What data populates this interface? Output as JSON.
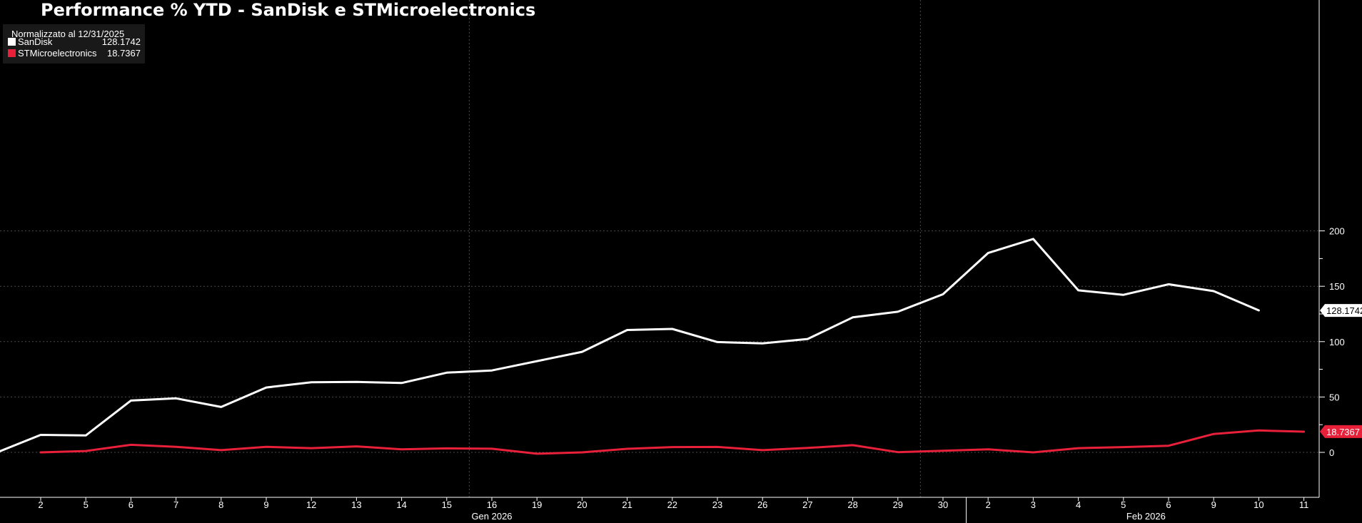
{
  "chart_data": {
    "type": "line",
    "title": "Performance % YTD - SanDisk e STMicroelectronics",
    "normalization_note": "Normalizzato al 12/31/2025",
    "x": [
      "2",
      "5",
      "6",
      "7",
      "8",
      "9",
      "12",
      "13",
      "14",
      "15",
      "16",
      "19",
      "20",
      "21",
      "22",
      "23",
      "26",
      "27",
      "28",
      "29",
      "30",
      "2",
      "3",
      "4",
      "5",
      "6",
      "9",
      "10",
      "11"
    ],
    "periods": [
      {
        "label": "Gen 2026",
        "start_index": 0,
        "end_index": 20
      },
      {
        "label": "Feb 2026",
        "start_index": 21,
        "end_index": 28
      }
    ],
    "yticks": [
      0,
      50,
      100,
      150,
      200
    ],
    "ylim": [
      -20,
      205
    ],
    "grid": true,
    "legend_position": "top-left",
    "series": [
      {
        "name": "SanDisk",
        "color": "#ffffff",
        "last_value": "128.1742",
        "leading_value": 1,
        "values": [
          15.8,
          15.3,
          46.8,
          48.8,
          41.0,
          58.6,
          63.3,
          63.6,
          62.6,
          72.0,
          74.0,
          null,
          90.8,
          110.5,
          111.5,
          99.6,
          98.4,
          102.4,
          121.9,
          127.0,
          142.8,
          180.0,
          192.7,
          146.3,
          142.3,
          151.8,
          145.6,
          128.2,
          null
        ]
      },
      {
        "name": "STMicroelectronics",
        "color": "#e8203a",
        "last_value": "18.7367",
        "values": [
          0,
          1.2,
          6.8,
          5.0,
          2.0,
          5.0,
          3.8,
          5.4,
          2.7,
          3.6,
          3.3,
          -1.2,
          0,
          3.2,
          4.8,
          4.9,
          2.0,
          4.0,
          6.5,
          0.2,
          1.4,
          2.8,
          0,
          3.8,
          4.8,
          6.0,
          16.6,
          19.8,
          18.7
        ]
      }
    ]
  }
}
